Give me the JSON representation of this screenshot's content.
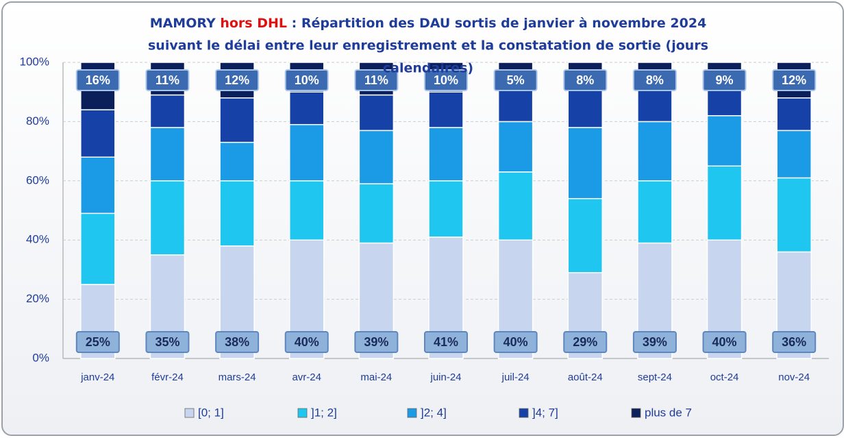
{
  "chart_data": {
    "type": "stacked_bar",
    "title": [
      "MAMORY",
      "hors DHL",
      ": Répartition des DAU sortis de janvier à novembre 2024",
      "suivant le délai entre leur enregistrement et la constatation de sortie (jours",
      "calendaires)"
    ],
    "categories": [
      "janv-24",
      "févr-24",
      "mars-24",
      "avr-24",
      "mai-24",
      "juin-24",
      "juil-24",
      "août-24",
      "sept-24",
      "oct-24",
      "nov-24"
    ],
    "series": [
      {
        "name": "[0; 1]",
        "color": "#c7d6ee",
        "values": [
          25,
          35,
          38,
          40,
          39,
          41,
          40,
          29,
          39,
          40,
          36
        ],
        "value_labels": [
          "25%",
          "35%",
          "38%",
          "40%",
          "39%",
          "41%",
          "40%",
          "29%",
          "39%",
          "40%",
          "36%"
        ]
      },
      {
        "name": "]1; 2]",
        "color": "#1fc6ef",
        "values": [
          24,
          25,
          22,
          20,
          20,
          19,
          23,
          25,
          21,
          25,
          25
        ]
      },
      {
        "name": "]2; 4]",
        "color": "#1b9ae6",
        "values": [
          19,
          18,
          13,
          19,
          18,
          18,
          17,
          24,
          20,
          17,
          16
        ]
      },
      {
        "name": "]4; 7]",
        "color": "#1641a6",
        "values": [
          16,
          11,
          15,
          11,
          12,
          12,
          15,
          14,
          12,
          9,
          11
        ]
      },
      {
        "name": "plus de 7",
        "color": "#0b1f5a",
        "values": [
          16,
          11,
          12,
          10,
          11,
          10,
          5,
          8,
          8,
          9,
          12
        ],
        "value_labels": [
          "16%",
          "11%",
          "12%",
          "10%",
          "11%",
          "10%",
          "5%",
          "8%",
          "8%",
          "9%",
          "12%"
        ]
      }
    ],
    "ylim": [
      0,
      100
    ],
    "yticks": [
      {
        "value": 0,
        "label": "0%"
      },
      {
        "value": 20,
        "label": "20%"
      },
      {
        "value": 40,
        "label": "40%"
      },
      {
        "value": 60,
        "label": "60%"
      },
      {
        "value": 80,
        "label": "80%"
      },
      {
        "value": 100,
        "label": "100%"
      }
    ],
    "grid": true,
    "legend": "bottom"
  }
}
